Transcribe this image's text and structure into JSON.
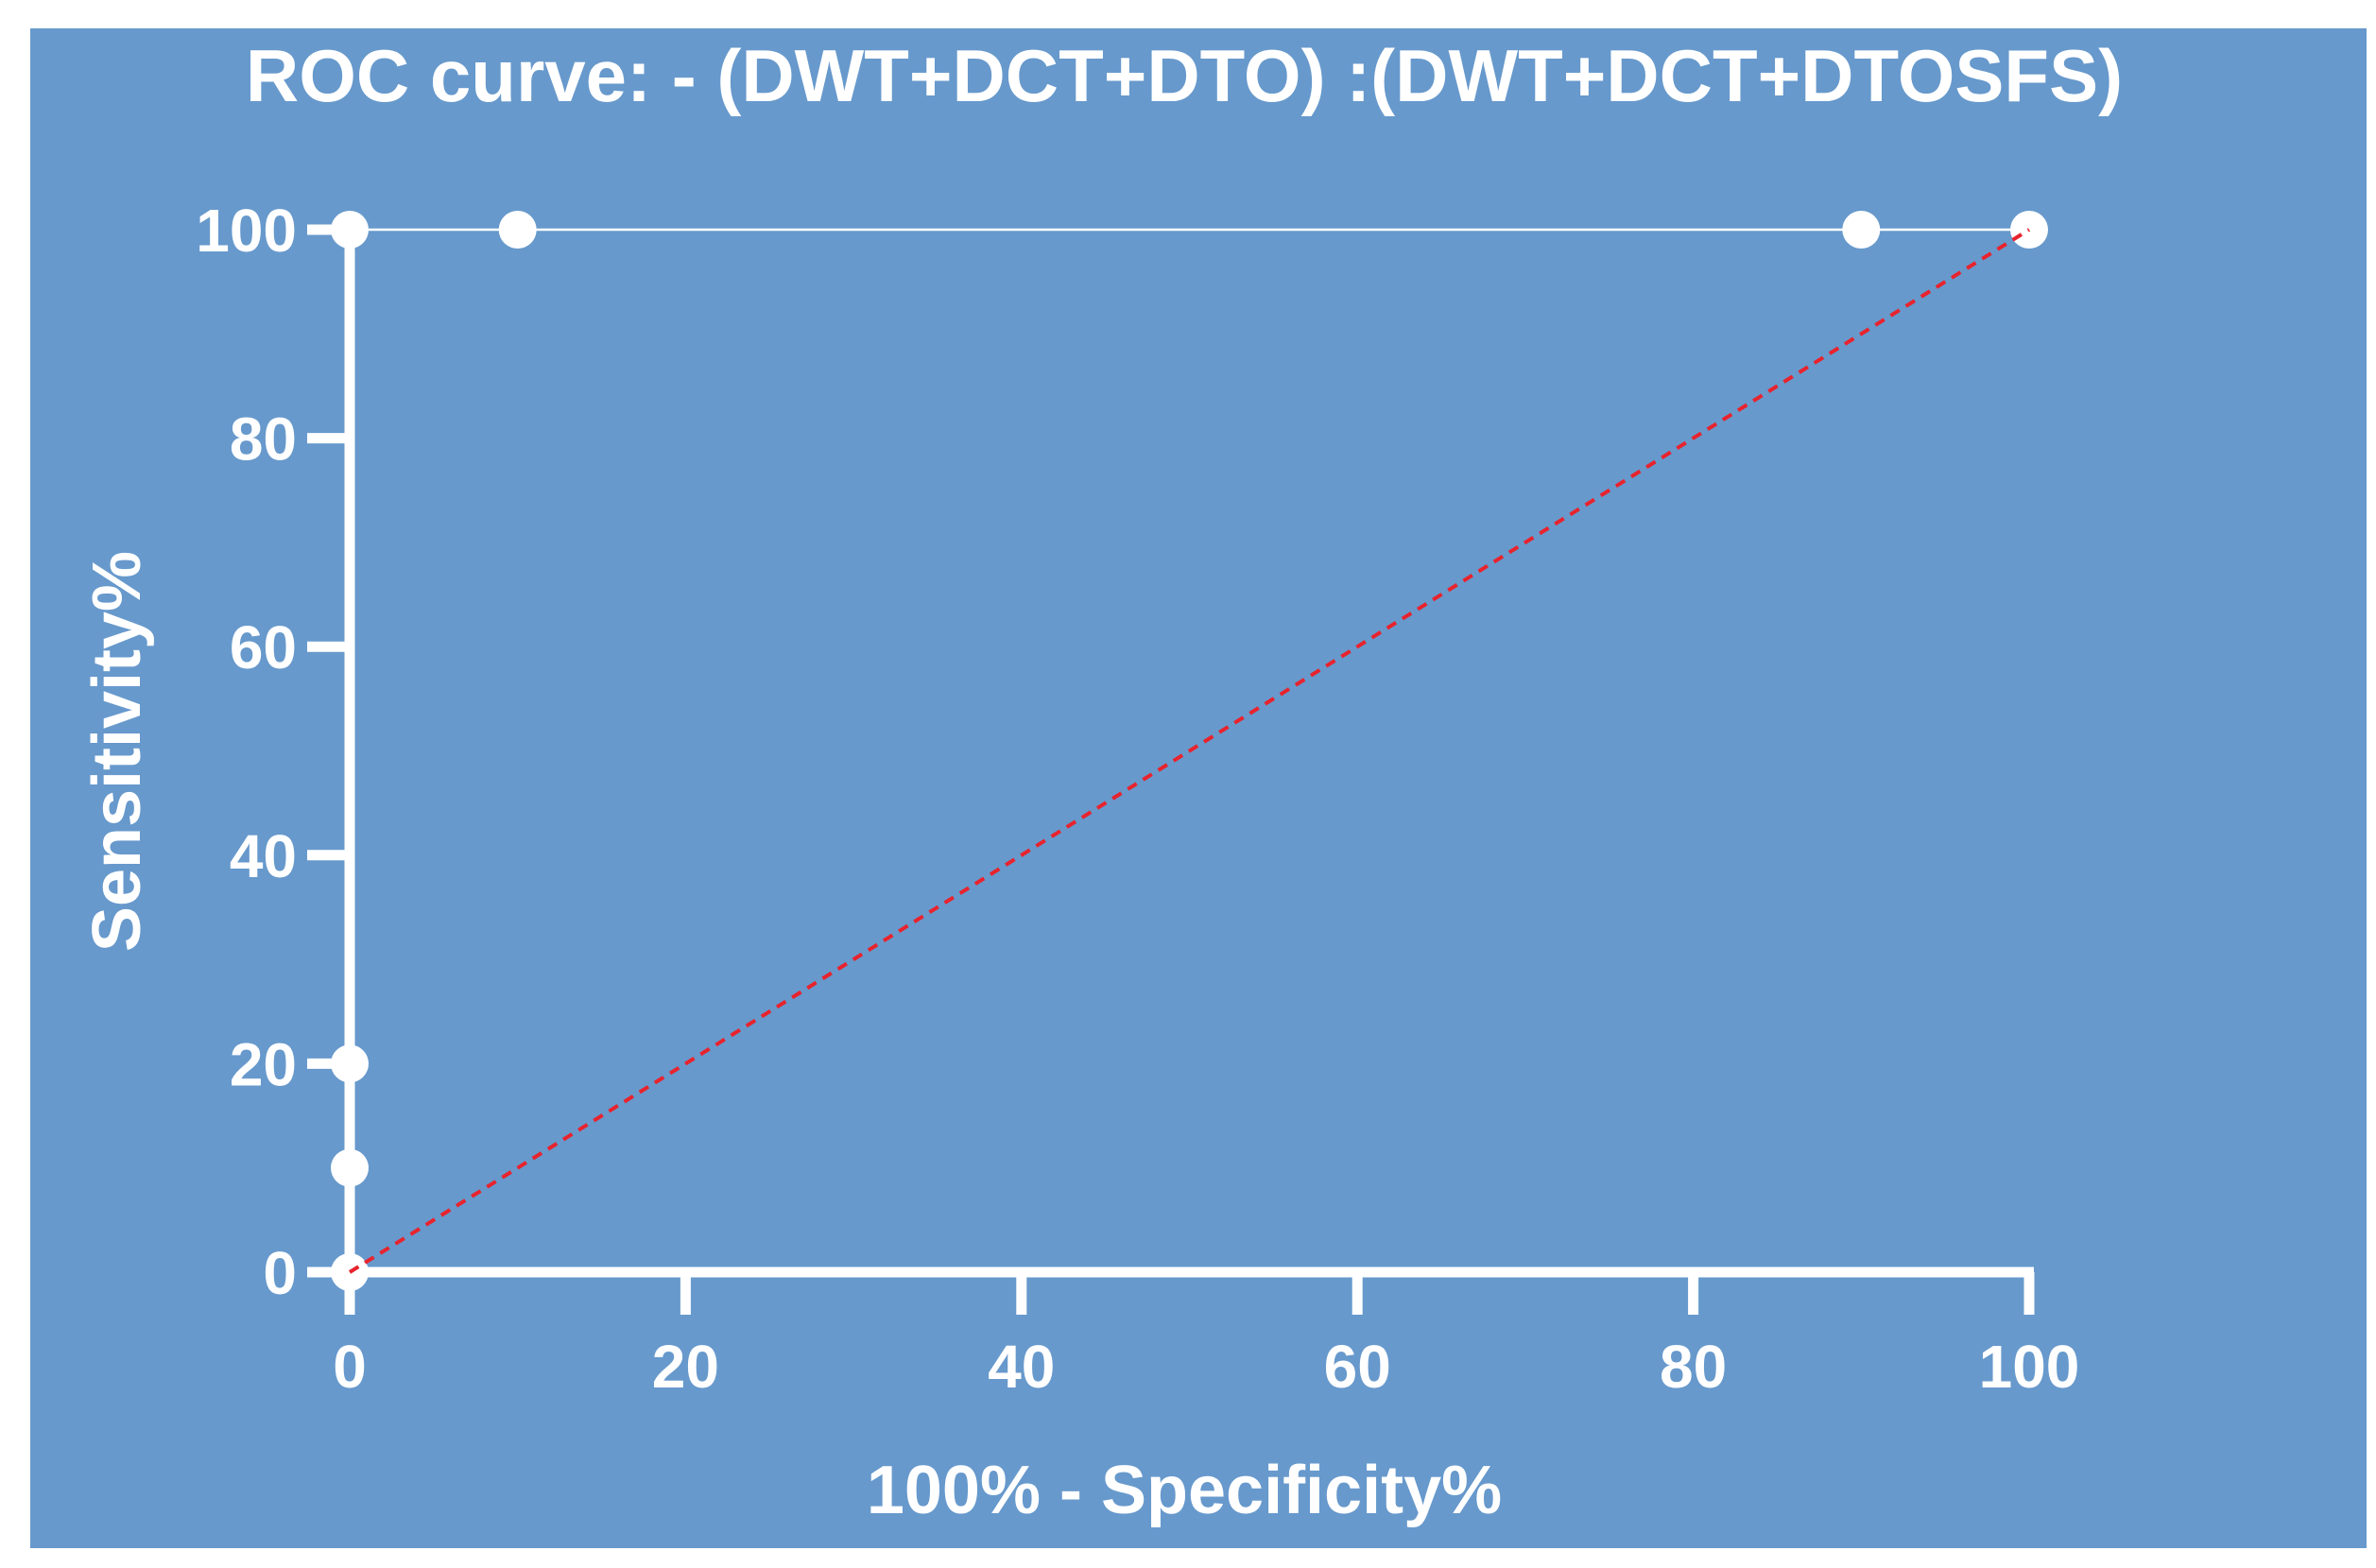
{
  "chart_data": {
    "type": "line",
    "title": "ROC curve: - (DWT+DCT+DTO) :(DWT+DCT+DTOSFS)",
    "xlabel": "100% - Specificity%",
    "ylabel": "Sensitivity%",
    "xlim": [
      0,
      100
    ],
    "ylim": [
      0,
      100
    ],
    "xticks": [
      0,
      20,
      40,
      60,
      80,
      100
    ],
    "yticks": [
      0,
      20,
      40,
      60,
      80,
      100
    ],
    "xtick_labels": [
      "0",
      "20",
      "40",
      "60",
      "80",
      "100"
    ],
    "ytick_labels": [
      "0",
      "20",
      "40",
      "60",
      "80",
      "100"
    ],
    "grid": false,
    "legend": "none",
    "series": [
      {
        "x": [
          0,
          0,
          0,
          0,
          10,
          90,
          100
        ],
        "y": [
          0,
          10,
          20,
          100,
          100,
          100,
          100
        ],
        "color": "#ffffff",
        "markers": true
      },
      {
        "x": [
          0,
          100
        ],
        "y": [
          0,
          100
        ],
        "color": "#e8232d",
        "style": "dashed",
        "markers": false
      }
    ],
    "background_color": "#6799cc",
    "axis_color": "#ffffff"
  }
}
